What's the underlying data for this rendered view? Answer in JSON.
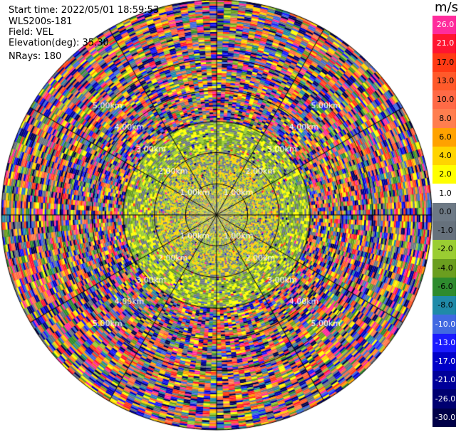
{
  "header": {
    "start_time": "Start time: 2022/05/01 18:59:53",
    "instrument": "WLS200s-181",
    "field": "Field: VEL",
    "elevation": "Elevation(deg): 35.30",
    "nrays": "NRays: 180"
  },
  "colorbar": {
    "unit": "m/s",
    "levels": [
      {
        "label": "26.0",
        "color": "#ff2c9c"
      },
      {
        "label": "21.0",
        "color": "#ff1530"
      },
      {
        "label": "17.0",
        "color": "#ff3a14"
      },
      {
        "label": "13.0",
        "color": "#ff5a2a"
      },
      {
        "label": "10.0",
        "color": "#ff6a46"
      },
      {
        "label": "8.0",
        "color": "#ff7e4e"
      },
      {
        "label": "6.0",
        "color": "#ffa200"
      },
      {
        "label": "4.0",
        "color": "#ffd400"
      },
      {
        "label": "2.0",
        "color": "#ffff00"
      },
      {
        "label": "1.0",
        "color": "#ffffff"
      },
      {
        "label": "0.0",
        "color": "#6d7985"
      },
      {
        "label": "-1.0",
        "color": "#66717c"
      },
      {
        "label": "-2.0",
        "color": "#9acd32"
      },
      {
        "label": "-4.0",
        "color": "#6b9e1f"
      },
      {
        "label": "-6.0",
        "color": "#2e8b2e"
      },
      {
        "label": "-8.0",
        "color": "#1f8aa8"
      },
      {
        "label": "-10.0",
        "color": "#4169e1"
      },
      {
        "label": "-13.0",
        "color": "#1a1aff"
      },
      {
        "label": "-17.0",
        "color": "#0000c8"
      },
      {
        "label": "-21.0",
        "color": "#00009a"
      },
      {
        "label": "-26.0",
        "color": "#000070"
      },
      {
        "label": "-30.0",
        "color": "#000048"
      }
    ]
  },
  "chart_data": {
    "type": "heatmap",
    "projection": "polar-ppi",
    "field": "VEL",
    "nrays": 180,
    "range_rings_km": [
      1,
      2,
      3,
      4,
      5
    ],
    "ring_labels": [
      "1.00km",
      "2.00km",
      "3.00km",
      "4.00km",
      "5.00km"
    ],
    "max_range_km": 6.9,
    "spokes": 12,
    "dominant_band_by_range": [
      {
        "range_km": [
          0.0,
          1.0
        ],
        "value": "0.0 to 2.0",
        "colors": [
          "#6d7985",
          "#ffd400",
          "#9acd32"
        ]
      },
      {
        "range_km": [
          1.0,
          2.0
        ],
        "value": "-2.0 to 4.0",
        "colors": [
          "#6d7985",
          "#9acd32",
          "#ffd400"
        ]
      },
      {
        "range_km": [
          2.0,
          3.0
        ],
        "value": "-4.0 to 4.0",
        "colors": [
          "#9acd32",
          "#ffff00",
          "#6d7985",
          "#6b9e1f"
        ]
      },
      {
        "range_km": [
          3.0,
          6.9
        ],
        "value": "noise -30.0 to 26.0",
        "colors": [
          "mixed"
        ]
      }
    ],
    "grid": true
  }
}
